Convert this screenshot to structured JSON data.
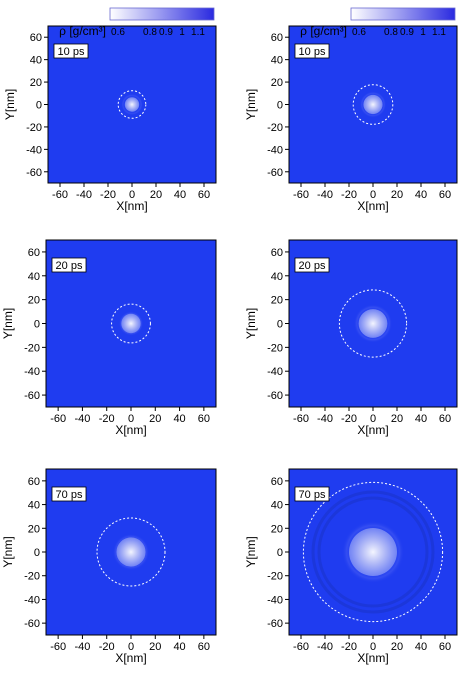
{
  "colors": {
    "field": "#1f3cf0",
    "frame": "#000000",
    "ring": "#ffffff",
    "colorbar_low": "#ffffff",
    "colorbar_high": "#2a2ae0"
  },
  "chart_data": [
    {
      "type": "heatmap",
      "panel": "top-left",
      "time_label": "10 ps",
      "xlabel": "X[nm]",
      "ylabel": "Y[nm]",
      "xlim": [
        -70,
        70
      ],
      "ylim": [
        -70,
        70
      ],
      "xticks": [
        -60,
        -40,
        -20,
        0,
        20,
        40,
        60
      ],
      "yticks": [
        -60,
        -40,
        -20,
        0,
        20,
        40,
        60
      ],
      "colorbar": {
        "title": "ρ [g/cm³]",
        "ticks": [
          "0.6",
          "0.8",
          "0.9",
          "1",
          "1.1"
        ],
        "range": [
          0.55,
          1.2
        ]
      },
      "features": {
        "core_radius": 6,
        "halo_radius": 9,
        "ring_radius": 11.5,
        "center": [
          0,
          0
        ]
      }
    },
    {
      "type": "heatmap",
      "panel": "top-right",
      "time_label": "10 ps",
      "xlabel": "X[nm]",
      "ylabel": "Y[nm]",
      "xlim": [
        -70,
        70
      ],
      "ylim": [
        -70,
        70
      ],
      "xticks": [
        -60,
        -40,
        -20,
        0,
        20,
        40,
        60
      ],
      "yticks": [
        -60,
        -40,
        -20,
        0,
        20,
        40,
        60
      ],
      "colorbar": {
        "title": "ρ [g/cm³]",
        "ticks": [
          "0.6",
          "0.8",
          "0.9",
          "1",
          "1.1"
        ],
        "range": [
          0.55,
          1.2
        ]
      },
      "features": {
        "core_radius": 8,
        "halo_radius": 11,
        "ring_radius": 16.5,
        "center": [
          0,
          0
        ]
      }
    },
    {
      "type": "heatmap",
      "panel": "middle-left",
      "time_label": "20 ps",
      "xlabel": "X[nm]",
      "ylabel": "Y[nm]",
      "xlim": [
        -70,
        70
      ],
      "ylim": [
        -70,
        70
      ],
      "xticks": [
        -60,
        -40,
        -20,
        0,
        20,
        40,
        60
      ],
      "yticks": [
        -60,
        -40,
        -20,
        0,
        20,
        40,
        60
      ],
      "features": {
        "core_radius": 8,
        "halo_radius": 10,
        "ring_radius": 16,
        "center": [
          0,
          0
        ]
      }
    },
    {
      "type": "heatmap",
      "panel": "middle-right",
      "time_label": "20 ps",
      "xlabel": "X[nm]",
      "ylabel": "Y[nm]",
      "xlim": [
        -70,
        70
      ],
      "ylim": [
        -70,
        70
      ],
      "xticks": [
        -60,
        -40,
        -20,
        0,
        20,
        40,
        60
      ],
      "yticks": [
        -60,
        -40,
        -20,
        0,
        20,
        40,
        60
      ],
      "features": {
        "core_radius": 12,
        "halo_radius": 16,
        "ring_radius": 28,
        "center": [
          0,
          0
        ]
      }
    },
    {
      "type": "heatmap",
      "panel": "bottom-left",
      "time_label": "70 ps",
      "xlabel": "X[nm]",
      "ylabel": "Y[nm]",
      "xlim": [
        -70,
        70
      ],
      "ylim": [
        -70,
        70
      ],
      "xticks": [
        -60,
        -40,
        -20,
        0,
        20,
        40,
        60
      ],
      "yticks": [
        -60,
        -40,
        -20,
        0,
        20,
        40,
        60
      ],
      "features": {
        "core_radius": 12,
        "halo_radius": 15,
        "ring_radius": 28,
        "center": [
          0,
          0
        ]
      }
    },
    {
      "type": "heatmap",
      "panel": "bottom-right",
      "time_label": "70 ps",
      "xlabel": "X[nm]",
      "ylabel": "Y[nm]",
      "xlim": [
        -70,
        70
      ],
      "ylim": [
        -70,
        70
      ],
      "xticks": [
        -60,
        -40,
        -20,
        0,
        20,
        40,
        60
      ],
      "yticks": [
        -60,
        -40,
        -20,
        0,
        20,
        40,
        60
      ],
      "features": {
        "core_radius": 20,
        "halo_radius": 26,
        "ring_radius": 58,
        "extra_rings": [
          45,
          50
        ],
        "center": [
          0,
          0
        ]
      }
    }
  ]
}
